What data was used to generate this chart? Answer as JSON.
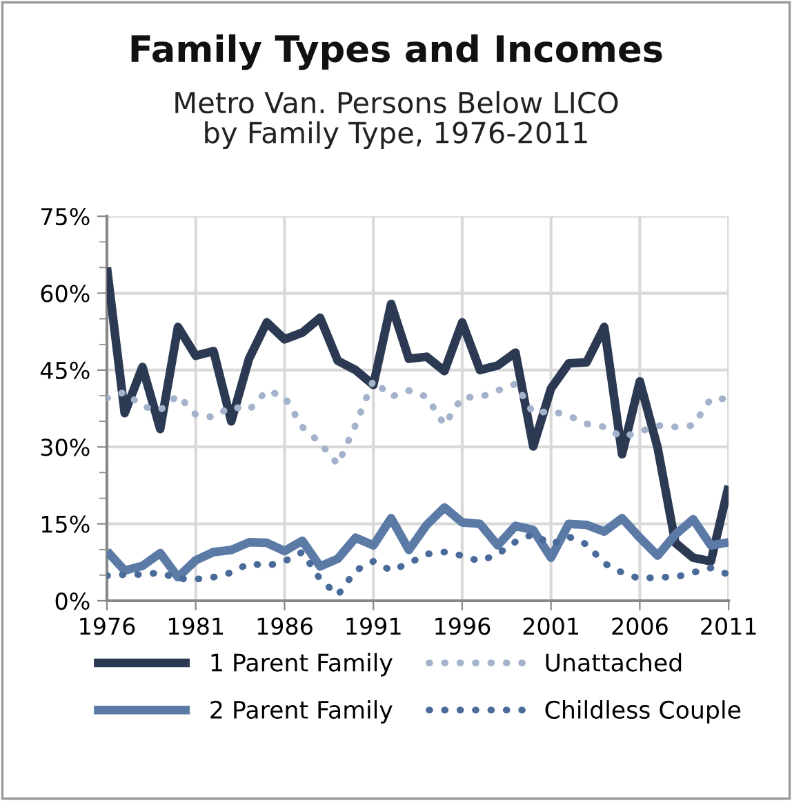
{
  "chart_data": {
    "type": "line",
    "title": "Family Types and Incomes",
    "subtitle": "Metro Van. Persons Below LICO\nby Family Type, 1976-2011",
    "x": [
      1976,
      1977,
      1978,
      1979,
      1980,
      1981,
      1982,
      1983,
      1984,
      1985,
      1986,
      1987,
      1988,
      1989,
      1990,
      1991,
      1992,
      1993,
      1994,
      1995,
      1996,
      1997,
      1998,
      1999,
      2000,
      2001,
      2002,
      2003,
      2004,
      2005,
      2006,
      2007,
      2008,
      2009,
      2010,
      2011
    ],
    "series": [
      {
        "name": "1 Parent Family",
        "color": "#2b3a52",
        "line_style": "solid",
        "values": [
          65.0,
          36.6,
          45.6,
          33.5,
          53.4,
          47.8,
          48.7,
          35.0,
          47.2,
          54.3,
          51.0,
          52.3,
          55.2,
          46.8,
          45.0,
          42.1,
          57.9,
          47.2,
          47.6,
          44.8,
          54.3,
          45.0,
          45.9,
          48.4,
          30.1,
          41.4,
          46.3,
          46.5,
          53.4,
          28.6,
          42.8,
          29.9,
          11.3,
          8.4,
          7.7,
          22.4
        ]
      },
      {
        "name": "2 Parent Family",
        "color": "#5b7aa6",
        "line_style": "solid",
        "values": [
          9.7,
          5.9,
          6.8,
          9.3,
          4.6,
          7.9,
          9.5,
          9.9,
          11.4,
          11.3,
          9.7,
          11.7,
          6.7,
          8.2,
          12.3,
          10.8,
          16.1,
          9.9,
          14.8,
          18.2,
          15.3,
          15.0,
          10.8,
          14.6,
          13.8,
          8.4,
          15.0,
          14.8,
          13.5,
          16.1,
          12.3,
          8.8,
          12.9,
          15.9,
          10.8,
          11.4
        ]
      },
      {
        "name": "Unattached",
        "color": "#a3b3cc",
        "line_style": "dotted",
        "values": [
          39.5,
          40.7,
          37.9,
          37.2,
          40.1,
          36.3,
          35.8,
          37.9,
          37.2,
          41.0,
          39.8,
          33.9,
          30.8,
          26.6,
          34.3,
          43.0,
          39.8,
          41.0,
          39.8,
          34.3,
          39.7,
          39.7,
          41.0,
          42.3,
          36.6,
          37.0,
          36.1,
          34.5,
          33.9,
          31.9,
          33.0,
          34.2,
          33.9,
          34.2,
          39.4,
          39.4
        ]
      },
      {
        "name": "Childless Couple",
        "color": "#4a6a9a",
        "line_style": "dotted",
        "values": [
          4.9,
          5.1,
          5.1,
          5.5,
          4.3,
          4.2,
          4.6,
          5.5,
          7.3,
          6.8,
          7.7,
          9.5,
          4.2,
          1.1,
          5.9,
          7.7,
          5.9,
          7.3,
          9.1,
          9.5,
          8.8,
          7.7,
          9.1,
          11.5,
          13.0,
          11.0,
          12.5,
          11.0,
          7.3,
          5.5,
          4.3,
          4.6,
          4.6,
          5.5,
          6.4,
          5.1
        ]
      }
    ],
    "xlim": [
      1976,
      2011
    ],
    "xticks": [
      1976,
      1981,
      1986,
      1991,
      1996,
      2001,
      2006,
      2011
    ],
    "ylim": [
      0,
      75
    ],
    "yticks": [
      {
        "value": 0,
        "label": "0%"
      },
      {
        "value": 5,
        "label": null
      },
      {
        "value": 10,
        "label": null
      },
      {
        "value": 15,
        "label": "15%"
      },
      {
        "value": 20,
        "label": null
      },
      {
        "value": 25,
        "label": null
      },
      {
        "value": 30,
        "label": "30%"
      },
      {
        "value": 35,
        "label": null
      },
      {
        "value": 40,
        "label": null
      },
      {
        "value": 45,
        "label": "45%"
      },
      {
        "value": 50,
        "label": null
      },
      {
        "value": 55,
        "label": null
      },
      {
        "value": 60,
        "label": "60%"
      },
      {
        "value": 65,
        "label": null
      },
      {
        "value": 70,
        "label": null
      },
      {
        "value": 75,
        "label": "75%"
      }
    ],
    "grid": true,
    "legend": "bottom",
    "marker": "none"
  }
}
